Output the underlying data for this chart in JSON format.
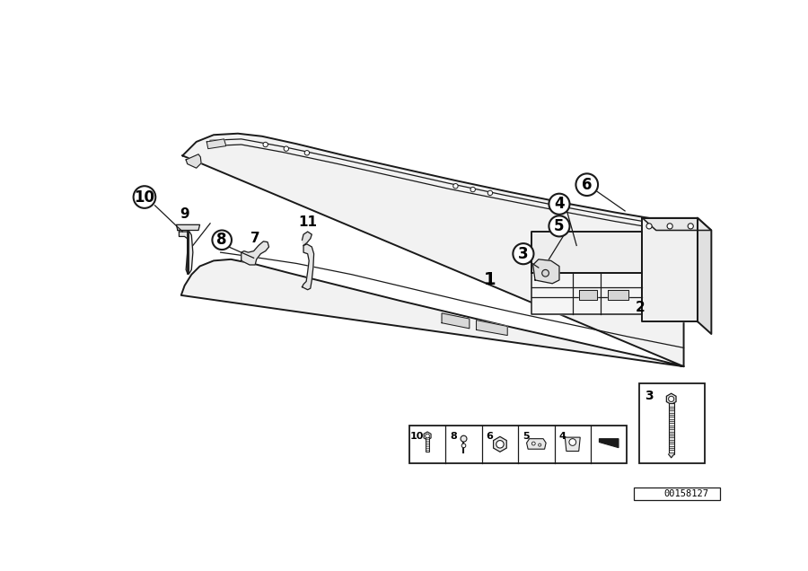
{
  "background_color": "#ffffff",
  "line_color": "#1a1a1a",
  "watermark": "00158127",
  "fig_width": 9.0,
  "fig_height": 6.36,
  "dpi": 100,
  "lw_main": 1.4,
  "lw_thin": 0.9,
  "lw_med": 1.1
}
